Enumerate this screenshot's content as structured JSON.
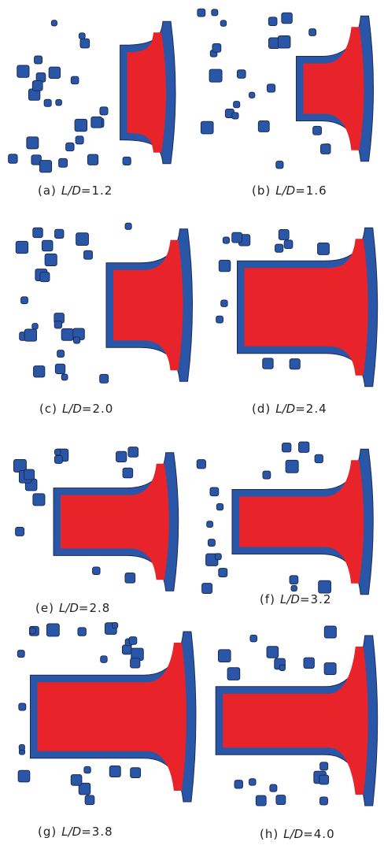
{
  "panels": [
    {
      "tag": "(a)",
      "variable": "L/D",
      "value": "=1.2"
    },
    {
      "tag": "(b)",
      "variable": "L/D",
      "value": "=1.6"
    },
    {
      "tag": "(c)",
      "variable": "L/D",
      "value": "=2.0"
    },
    {
      "tag": "(d)",
      "variable": "L/D",
      "value": "=2.4"
    },
    {
      "tag": "(e)",
      "variable": "L/D",
      "value": "=2.8"
    },
    {
      "tag": "(f)",
      "variable": "L/D",
      "value": "=3.2"
    },
    {
      "tag": "(g)",
      "variable": "L/D",
      "value": "=3.8"
    },
    {
      "tag": "(h)",
      "variable": "L/D",
      "value": "=4.0"
    }
  ]
}
